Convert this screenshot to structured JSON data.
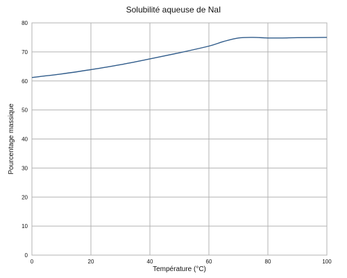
{
  "chart_data": {
    "type": "line",
    "title": "Solubilité aqueuse de NaI",
    "xlabel": "Température  (°C)",
    "ylabel": "Pourcentage massique",
    "xlim": [
      0,
      100
    ],
    "ylim": [
      0,
      80
    ],
    "xticks": [
      0,
      20,
      40,
      60,
      80,
      100
    ],
    "yticks": [
      0,
      10,
      20,
      30,
      40,
      50,
      60,
      70,
      80
    ],
    "grid": true,
    "legend": "none",
    "series": [
      {
        "color": "#2f5b8a",
        "x": [
          0,
          10,
          20,
          30,
          40,
          50,
          60,
          65,
          70,
          75,
          80,
          85,
          90,
          100
        ],
        "y": [
          61.2,
          62.4,
          63.9,
          65.6,
          67.6,
          69.7,
          72.0,
          73.6,
          74.8,
          75.0,
          74.8,
          74.8,
          74.9,
          75.0
        ]
      }
    ]
  }
}
